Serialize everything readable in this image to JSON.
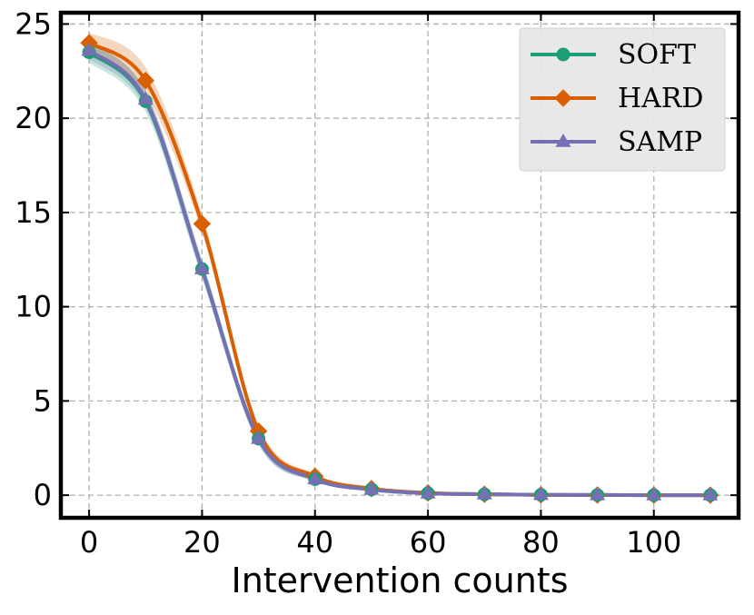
{
  "chart_data": {
    "type": "line",
    "title": "",
    "xlabel": "Intervention counts",
    "ylabel": "",
    "xlim": [
      -5,
      115
    ],
    "ylim": [
      -1.2,
      25.6
    ],
    "xticks": [
      0,
      20,
      40,
      60,
      80,
      100
    ],
    "yticks": [
      0,
      5,
      10,
      15,
      20,
      25
    ],
    "xtick_labels": [
      "0",
      "20",
      "40",
      "60",
      "80",
      "100"
    ],
    "ytick_labels": [
      "0",
      "5",
      "10",
      "15",
      "20",
      "25"
    ],
    "grid": true,
    "legend_position": "top-right",
    "x": [
      0,
      10,
      20,
      30,
      40,
      50,
      60,
      70,
      80,
      90,
      100,
      110
    ],
    "series": [
      {
        "name": "SOFT",
        "marker": "circle",
        "color": "#1b9e77",
        "values": [
          23.5,
          20.9,
          12.0,
          3.0,
          0.85,
          0.3,
          0.1,
          0.05,
          0.02,
          0.01,
          0.0,
          0.0
        ],
        "band": [
          0.55,
          0.55,
          0.5,
          0.3,
          0.12,
          0.06,
          0.03,
          0.02,
          0.01,
          0.0,
          0.0,
          0.0
        ]
      },
      {
        "name": "HARD",
        "marker": "diamond",
        "color": "#d95f02",
        "values": [
          24.0,
          22.0,
          14.4,
          3.4,
          1.0,
          0.35,
          0.12,
          0.05,
          0.02,
          0.01,
          0.0,
          0.0
        ],
        "band": [
          0.55,
          0.7,
          0.5,
          0.3,
          0.12,
          0.06,
          0.03,
          0.02,
          0.01,
          0.0,
          0.0,
          0.0
        ]
      },
      {
        "name": "SAMP",
        "marker": "triangle",
        "color": "#7570b3",
        "values": [
          23.6,
          21.0,
          12.0,
          3.0,
          0.85,
          0.3,
          0.1,
          0.05,
          0.02,
          0.01,
          0.0,
          0.0
        ],
        "band": [
          0.45,
          0.45,
          0.4,
          0.3,
          0.12,
          0.06,
          0.03,
          0.02,
          0.01,
          0.0,
          0.0,
          0.0
        ]
      }
    ]
  }
}
